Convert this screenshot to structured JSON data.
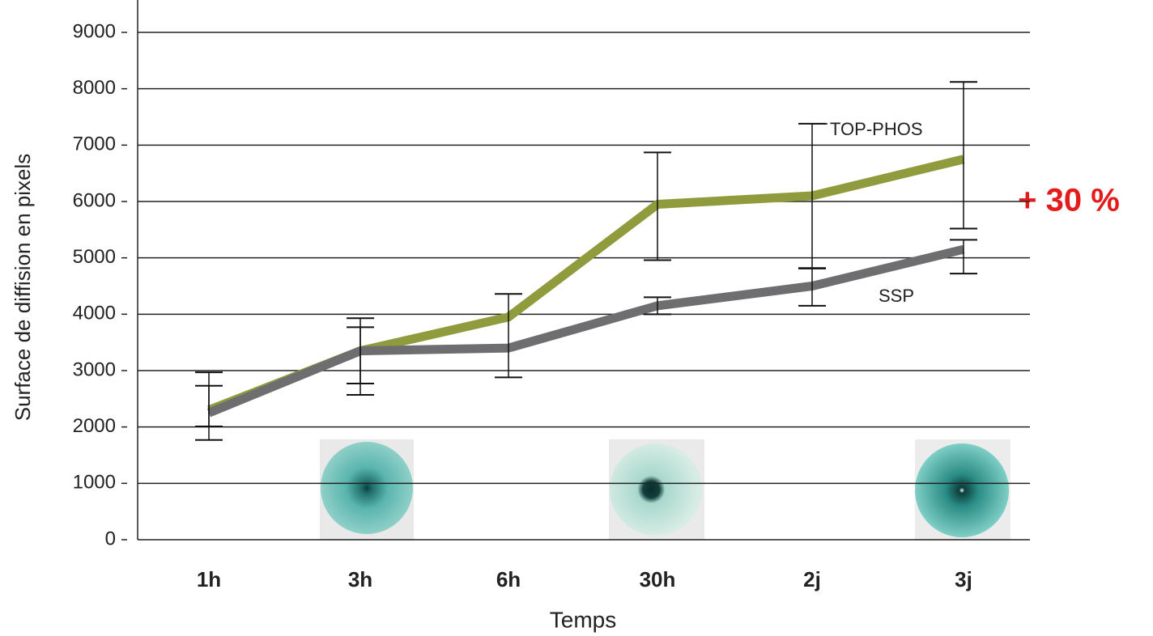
{
  "chart_data": {
    "type": "line",
    "y_label": "Surface de diffision en pixels",
    "x_label": "Temps",
    "annotation": "+ 30 %",
    "categories": [
      "1h",
      "3h",
      "6h",
      "30h",
      "2j",
      "3j"
    ],
    "series": [
      {
        "name": "TOP-PHOS",
        "color": "#8f9b3c",
        "values": [
          2300,
          3350,
          3950,
          5950,
          6100,
          6750
        ],
        "error_bars": [
          [
            1770,
            2970
          ],
          [
            2570,
            3930
          ],
          [
            2880,
            4360
          ],
          [
            4960,
            6870
          ],
          [
            4820,
            7380
          ],
          [
            5520,
            8120
          ]
        ]
      },
      {
        "name": "SSP",
        "color": "#6e6e70",
        "values": [
          2250,
          3350,
          3400,
          4150,
          4500,
          5150
        ],
        "error_bars": [
          [
            2010,
            2730
          ],
          [
            2770,
            3770
          ],
          null,
          [
            4000,
            4300
          ],
          [
            4150,
            4810
          ],
          [
            4720,
            5320
          ]
        ]
      }
    ],
    "ylim": [
      0,
      9000
    ],
    "yticks": [
      0,
      1000,
      2000,
      3000,
      4000,
      5000,
      6000,
      7000,
      8000,
      9000
    ],
    "grid": true
  }
}
